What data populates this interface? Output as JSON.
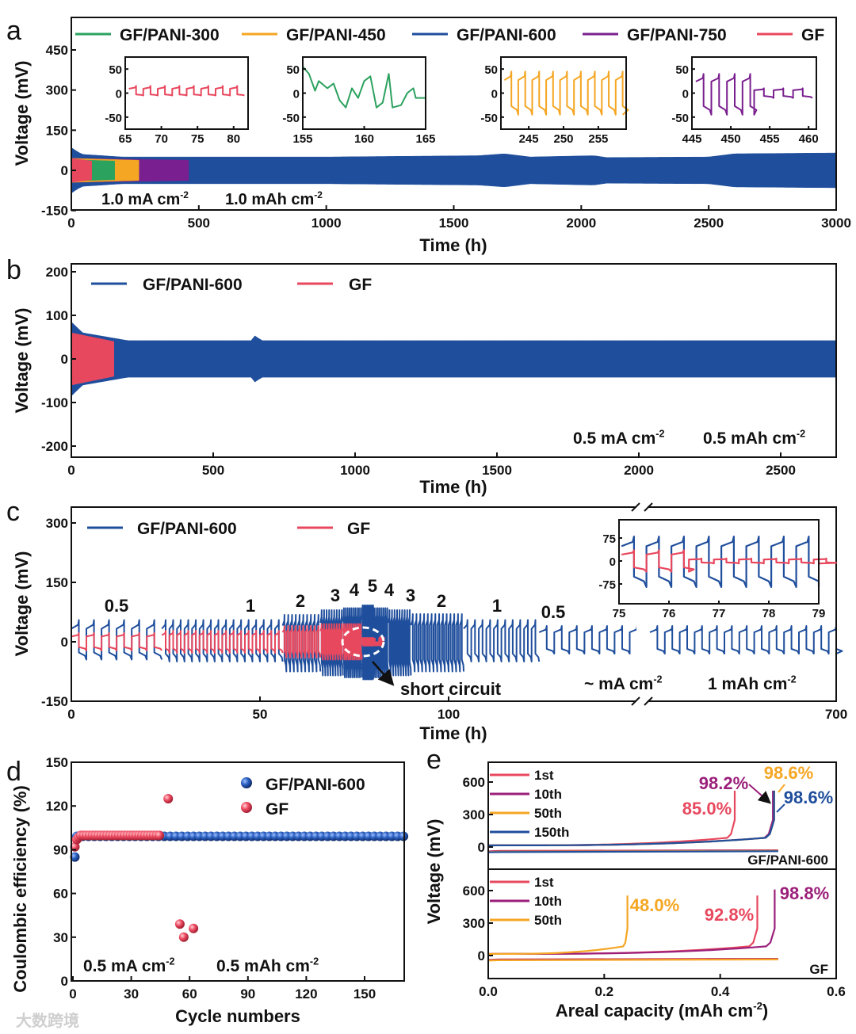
{
  "panel_labels": [
    "a",
    "b",
    "c",
    "d",
    "e"
  ],
  "watermark": "大数跨境",
  "chart_data": [
    {
      "panel": "a",
      "type": "line",
      "xlabel": "Time (h)",
      "ylabel": "Voltage (mV)",
      "xlim": [
        0,
        3000
      ],
      "ylim": [
        -150,
        573
      ],
      "xticks": [
        "0",
        "500",
        "1000",
        "1500",
        "2000",
        "2500",
        "3000"
      ],
      "yticks": [
        "-150",
        "0",
        "150",
        "300",
        "450"
      ],
      "conditions": {
        "current": "1.0 mA cm",
        "current_sup": "-2",
        "capacity": "1.0 mAh cm",
        "capacity_sup": "-2"
      },
      "series": [
        {
          "name": "GF/PANI-300",
          "color": "#2ca25f",
          "t_end": 170,
          "envelope": [
            [
              0,
              40
            ],
            [
              170,
              35
            ]
          ]
        },
        {
          "name": "GF/PANI-450",
          "color": "#f5a623",
          "t_end": 265,
          "envelope": [
            [
              0,
              45
            ],
            [
              265,
              38
            ]
          ]
        },
        {
          "name": "GF/PANI-600",
          "color": "#1f4e9c",
          "t_end": 3000,
          "envelope": [
            [
              0,
              85
            ],
            [
              40,
              60
            ],
            [
              200,
              50
            ],
            [
              1000,
              50
            ],
            [
              1600,
              55
            ],
            [
              1700,
              62
            ],
            [
              1800,
              50
            ],
            [
              2050,
              55
            ],
            [
              2100,
              48
            ],
            [
              2500,
              50
            ],
            [
              2600,
              62
            ],
            [
              3000,
              65
            ]
          ]
        },
        {
          "name": "GF/PANI-750",
          "color": "#7a1f8f",
          "t_end": 460,
          "envelope": [
            [
              0,
              45
            ],
            [
              460,
              38
            ]
          ]
        },
        {
          "name": "GF",
          "color": "#e8485e",
          "t_end": 80,
          "envelope": [
            [
              0,
              45
            ],
            [
              80,
              35
            ]
          ]
        }
      ],
      "legend_order": [
        0,
        1,
        2,
        3,
        4
      ],
      "insets": [
        {
          "series": "GF",
          "color": "#e8485e",
          "xlim": [
            65,
            82
          ],
          "ylim": [
            -75,
            75
          ],
          "xticks": [
            "65",
            "70",
            "75",
            "80"
          ],
          "yticks": [
            "-50",
            "0",
            "50"
          ],
          "period_h": 2,
          "amp_mV": [
            15,
            5
          ]
        },
        {
          "series": "GF/PANI-300",
          "color": "#2ca25f",
          "xlim": [
            155,
            165
          ],
          "ylim": [
            -75,
            75
          ],
          "xticks": [
            "155",
            "160",
            "165"
          ],
          "yticks": [
            "-50",
            "0",
            "50"
          ],
          "period_h": 2.2,
          "amp_mV": [
            45,
            45
          ]
        },
        {
          "series": "GF/PANI-450",
          "color": "#f5a623",
          "xlim": [
            241,
            259
          ],
          "ylim": [
            -75,
            75
          ],
          "xticks": [
            "245",
            "250",
            "255"
          ],
          "yticks": [
            "-50",
            "0",
            "50"
          ],
          "period_h": 2,
          "amp_mV": [
            45,
            45
          ]
        },
        {
          "series": "GF/PANI-750",
          "color": "#7a1f8f",
          "xlim": [
            445,
            461
          ],
          "ylim": [
            -75,
            75
          ],
          "xticks": [
            "445",
            "450",
            "455",
            "460"
          ],
          "yticks": [
            "-50",
            "0",
            "50"
          ],
          "period_h": 2,
          "amp_mV": [
            40,
            45
          ]
        }
      ]
    },
    {
      "panel": "b",
      "type": "line",
      "xlabel": "Time (h)",
      "ylabel": "Voltage (mV)",
      "xlim": [
        0,
        2695
      ],
      "ylim": [
        -222,
        218
      ],
      "xticks": [
        "0",
        "500",
        "1000",
        "1500",
        "2000",
        "2500"
      ],
      "yticks": [
        "-200",
        "-100",
        "0",
        "100",
        "200"
      ],
      "conditions": {
        "current": "0.5 mA cm",
        "current_sup": "-2",
        "capacity": "0.5 mAh cm",
        "capacity_sup": "-2"
      },
      "series": [
        {
          "name": "GF/PANI-600",
          "color": "#1f4e9c",
          "t_end": 2695,
          "envelope": [
            [
              0,
              85
            ],
            [
              40,
              60
            ],
            [
              200,
              42
            ],
            [
              640,
              42
            ],
            [
              650,
              58
            ],
            [
              665,
              42
            ],
            [
              2695,
              42
            ]
          ]
        },
        {
          "name": "GF",
          "color": "#e8485e",
          "t_end": 150,
          "envelope": [
            [
              0,
              60
            ],
            [
              150,
              40
            ]
          ]
        }
      ]
    },
    {
      "panel": "c",
      "type": "line",
      "xlabel": "Time (h)",
      "ylabel": "Voltage (mV)",
      "ylim": [
        -150,
        342
      ],
      "xticks": [
        "0",
        "50",
        "100",
        "700"
      ],
      "yticks": [
        "-150",
        "0",
        "150",
        "300"
      ],
      "conditions": {
        "current": "~ mA cm",
        "current_sup": "-2",
        "capacity": "1 mAh cm",
        "capacity_sup": "-2"
      },
      "annotation": "short circuit",
      "series_names": [
        "GF/PANI-600",
        "GF"
      ],
      "colors": [
        "#1f4e9c",
        "#e8485e"
      ],
      "rate_segments": [
        {
          "rate": "0.5",
          "t": [
            0,
            24
          ],
          "period_h": 4,
          "pani_amp": [
            55,
            45
          ],
          "gf_amp": [
            22,
            22
          ]
        },
        {
          "rate": "1",
          "t": [
            24,
            56
          ],
          "period_h": 2,
          "pani_amp": [
            55,
            50
          ],
          "gf_amp": [
            28,
            28
          ]
        },
        {
          "rate": "2",
          "t": [
            56,
            66
          ],
          "period_h": 1,
          "pani_amp": [
            68,
            75
          ],
          "gf_amp": [
            40,
            40
          ]
        },
        {
          "rate": "3",
          "t": [
            66,
            72
          ],
          "period_h": 0.67,
          "pani_amp": [
            80,
            85
          ],
          "gf_amp": [
            45,
            45
          ]
        },
        {
          "rate": "4",
          "t": [
            72,
            77
          ],
          "period_h": 0.5,
          "pani_amp": [
            85,
            90
          ],
          "gf_amp": [
            45,
            45
          ]
        },
        {
          "rate": "5",
          "t": [
            77,
            80
          ],
          "period_h": 0.4,
          "pani_amp": [
            92,
            95
          ],
          "gf_amp": [
            10,
            10
          ]
        },
        {
          "rate": "4",
          "t": [
            80,
            84
          ],
          "period_h": 0.5,
          "pani_amp": [
            85,
            90
          ],
          "gf_amp": null
        },
        {
          "rate": "3",
          "t": [
            84,
            90
          ],
          "period_h": 0.67,
          "pani_amp": [
            80,
            85
          ],
          "gf_amp": null
        },
        {
          "rate": "2",
          "t": [
            90,
            104
          ],
          "period_h": 1,
          "pani_amp": [
            70,
            75
          ],
          "gf_amp": null
        },
        {
          "rate": "1",
          "t": [
            104,
            124
          ],
          "period_h": 2,
          "pani_amp": [
            55,
            50
          ],
          "gf_amp": null
        },
        {
          "rate": "0.5",
          "t": [
            124,
            150
          ],
          "period_h": 4,
          "pani_amp": [
            40,
            30
          ],
          "gf_amp": null
        },
        {
          "rate": "",
          "t": [
            650,
            700
          ],
          "period_h": 4,
          "pani_amp": [
            40,
            30
          ],
          "gf_amp": null
        }
      ],
      "inset": {
        "xlim": [
          75,
          79
        ],
        "ylim": [
          -110,
          110
        ],
        "xticks": [
          "75",
          "76",
          "77",
          "78",
          "79"
        ],
        "yticks": [
          "-75",
          "0",
          "75"
        ],
        "period_h": 0.5,
        "pani_amp": [
          80,
          85
        ],
        "gf_amp_before": 35,
        "gf_amp_after": 8,
        "gf_short_at": 76.4
      }
    },
    {
      "panel": "d",
      "type": "scatter",
      "xlabel": "Cycle numbers",
      "ylabel": "Coulombic efficiency (%)",
      "xlim": [
        -1,
        171
      ],
      "ylim": [
        0,
        150
      ],
      "xticks": [
        "0",
        "30",
        "60",
        "90",
        "120",
        "150"
      ],
      "yticks": [
        "0",
        "30",
        "60",
        "90",
        "120",
        "150"
      ],
      "conditions": {
        "current": "0.5 mA cm",
        "current_sup": "-2",
        "capacity": "0.5 mAh cm",
        "capacity_sup": "-2"
      },
      "series": [
        {
          "name": "GF/PANI-600",
          "color": "#1f4e9c",
          "first": [
            [
              1,
              85
            ]
          ],
          "steady": {
            "from": 2,
            "to": 170,
            "value": 99.2
          }
        },
        {
          "name": "GF",
          "color": "#e8485e",
          "first": [
            [
              1,
              92
            ],
            [
              2,
              97
            ],
            [
              3,
              98.5
            ]
          ],
          "steady": {
            "from": 4,
            "to": 45,
            "value": 99.8
          },
          "outliers": [
            [
              49,
              125
            ],
            [
              55,
              39
            ],
            [
              57,
              30
            ],
            [
              62,
              36
            ]
          ]
        }
      ]
    },
    {
      "panel": "e",
      "type": "line",
      "xlabel": "Areal capacity (mAh cm",
      "xlabel_sup": "-2",
      "xlabel_end": ")",
      "ylabel": "Voltage (mV)",
      "xlim": [
        0,
        0.6
      ],
      "xticks": [
        "0.0",
        "0.2",
        "0.4",
        "0.6"
      ],
      "subplots": [
        {
          "name": "GF/PANI-600",
          "ylim": [
            -205,
            783
          ],
          "yticks": [
            "0",
            "300",
            "600"
          ],
          "series": [
            {
              "name": "1st",
              "color": "#e8485e",
              "capacity": 0.425,
              "ce": "85.0%"
            },
            {
              "name": "10th",
              "color": "#9b1f7a",
              "capacity": 0.491,
              "ce": "98.2%"
            },
            {
              "name": "50th",
              "color": "#f5a623",
              "capacity": 0.493,
              "ce": "98.6%"
            },
            {
              "name": "150th",
              "color": "#1f4e9c",
              "capacity": 0.493,
              "ce": "98.6%"
            }
          ]
        },
        {
          "name": "GF",
          "ylim": [
            -212,
            797
          ],
          "yticks": [
            "0",
            "300",
            "600"
          ],
          "series": [
            {
              "name": "1st",
              "color": "#e8485e",
              "capacity": 0.464,
              "ce": "92.8%"
            },
            {
              "name": "10th",
              "color": "#9b1f7a",
              "capacity": 0.494,
              "ce": "98.8%"
            },
            {
              "name": "50th",
              "color": "#f5a623",
              "capacity": 0.24,
              "ce": "48.0%"
            }
          ]
        }
      ]
    }
  ]
}
